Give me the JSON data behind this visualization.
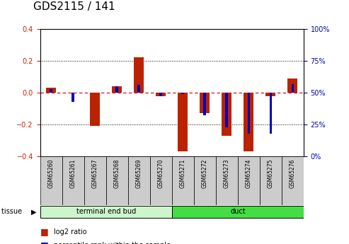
{
  "title": "GDS2115 / 141",
  "samples": [
    "GSM65260",
    "GSM65261",
    "GSM65267",
    "GSM65268",
    "GSM65269",
    "GSM65270",
    "GSM65271",
    "GSM65272",
    "GSM65273",
    "GSM65274",
    "GSM65275",
    "GSM65276"
  ],
  "log2_ratio": [
    0.03,
    0.0,
    -0.21,
    0.04,
    0.225,
    -0.02,
    -0.37,
    -0.13,
    -0.27,
    -0.37,
    -0.02,
    0.09
  ],
  "pct_rank_raw": [
    53,
    43,
    50,
    55,
    56,
    47,
    49,
    32,
    23,
    18,
    18,
    57
  ],
  "groups": [
    {
      "label": "terminal end bud",
      "start": 0,
      "end": 5,
      "color": "#ccf5cc"
    },
    {
      "label": "duct",
      "start": 6,
      "end": 11,
      "color": "#44dd44"
    }
  ],
  "ylim_left": [
    -0.4,
    0.4
  ],
  "ylim_right": [
    0,
    100
  ],
  "bar_color_red": "#bb2200",
  "bar_color_blue": "#0000bb",
  "dashed_line_color": "#cc0000",
  "title_fontsize": 11,
  "tick_fontsize": 7,
  "bg_color": "#ffffff",
  "tick_label_color_left": "#cc2200",
  "tick_label_color_right": "#0000bb",
  "label_box_color": "#cccccc",
  "n_samples": 12
}
